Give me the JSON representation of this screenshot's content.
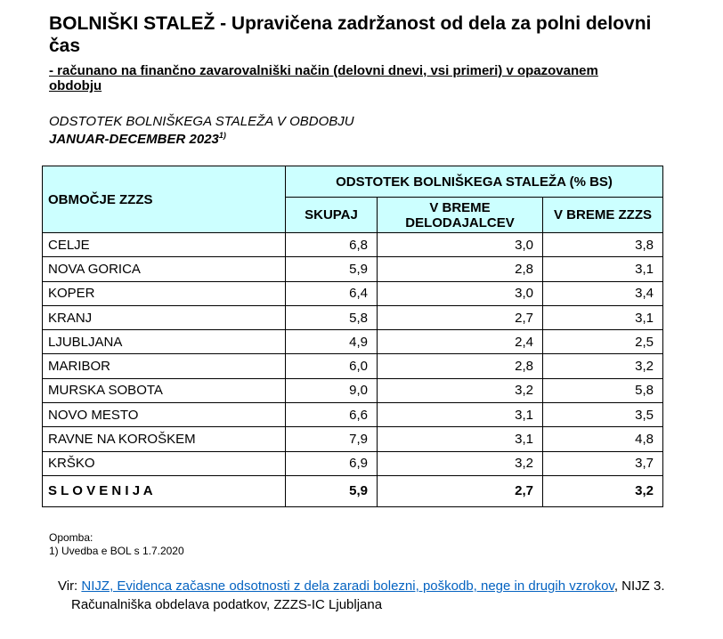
{
  "header": {
    "title": "BOLNIŠKI STALEŽ - Upravičena zadržanost od dela za polni delovni čas",
    "subtitle": "-  računano na finančno zavarovalniški način (delovni dnevi, vsi primeri) v opazovanem obdobju"
  },
  "caption": {
    "line1": "ODSTOTEK BOLNIŠKEGA STALEŽA V OBDOBJU",
    "line2": "JANUAR-DECEMBER 2023",
    "note_ref": "1)"
  },
  "table": {
    "region_header": "OBMOČJE ZZZS",
    "group_header": "ODSTOTEK  BOLNIŠKEGA STALEŽA (% BS)",
    "columns": [
      "SKUPAJ",
      "V BREME DELODAJALCEV",
      "V BREME ZZZS"
    ],
    "rows": [
      [
        "CELJE",
        "6,8",
        "3,0",
        "3,8"
      ],
      [
        "NOVA GORICA",
        "5,9",
        "2,8",
        "3,1"
      ],
      [
        "KOPER",
        "6,4",
        "3,0",
        "3,4"
      ],
      [
        "KRANJ",
        "5,8",
        "2,7",
        "3,1"
      ],
      [
        "LJUBLJANA",
        "4,9",
        "2,4",
        "2,5"
      ],
      [
        "MARIBOR",
        "6,0",
        "2,8",
        "3,2"
      ],
      [
        "MURSKA SOBOTA",
        "9,0",
        "3,2",
        "5,8"
      ],
      [
        "NOVO MESTO",
        "6,6",
        "3,1",
        "3,5"
      ],
      [
        "RAVNE NA KOROŠKEM",
        "7,9",
        "3,1",
        "4,8"
      ],
      [
        "KRŠKO",
        "6,9",
        "3,2",
        "3,7"
      ]
    ],
    "total": [
      "S L O V E N I J A",
      "5,9",
      "2,7",
      "3,2"
    ]
  },
  "note": {
    "label": "Opomba:",
    "text": "1) Uvedba e BOL s 1.7.2020"
  },
  "source": {
    "label": "Vir:",
    "link": "NIJZ, Evidenca začasne odsotnosti z dela zaradi bolezni, poškodb, nege in drugih vzrokov",
    "rest": ", NIJZ 3.",
    "line2": "Računalniška obdelava podatkov, ZZZS-IC Ljubljana"
  }
}
